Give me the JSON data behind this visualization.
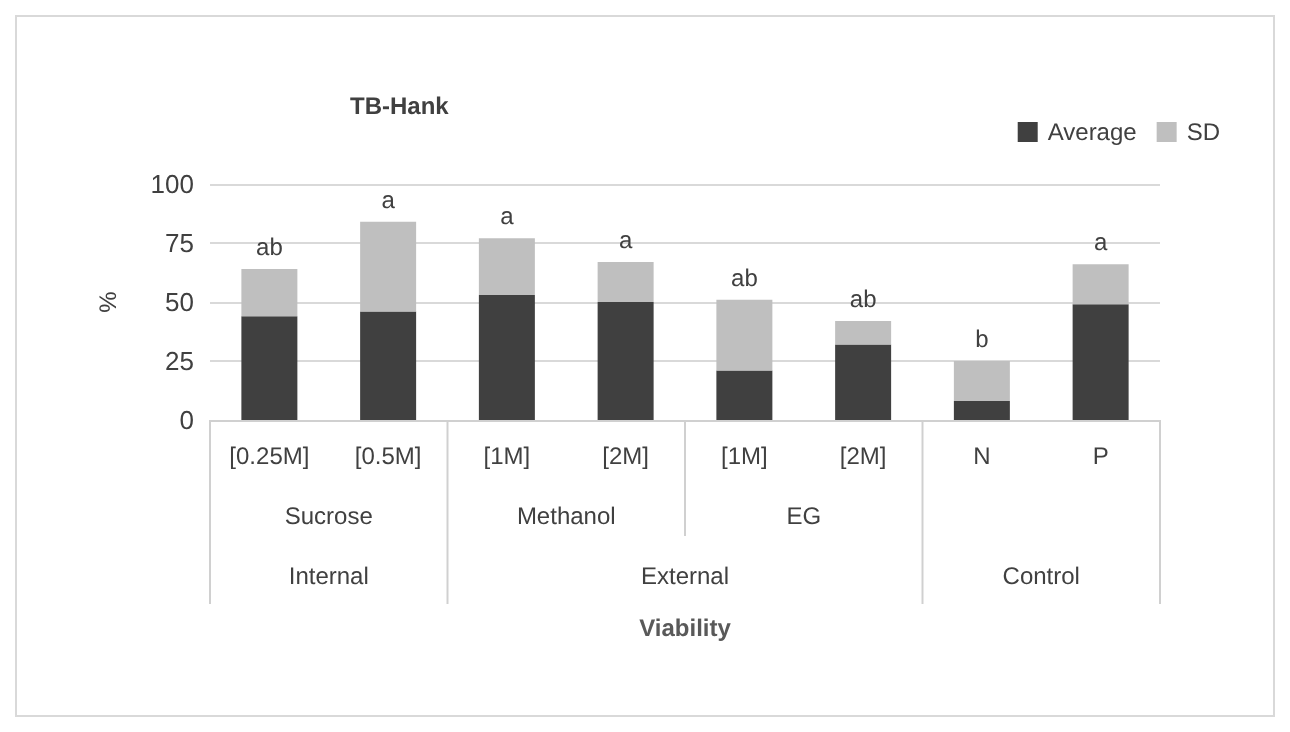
{
  "chart_data": {
    "type": "bar",
    "title": "TB-Hank",
    "ylabel": "%",
    "categories": [
      "[0.25M]",
      "[0.5M]",
      "[1M]",
      "[2M]",
      "[1M]",
      "[2M]",
      "N",
      "P"
    ],
    "stacked": true,
    "series": [
      {
        "name": "Average",
        "color": "#404040",
        "values": [
          44,
          46,
          53,
          50,
          21,
          32,
          8,
          49
        ]
      },
      {
        "name": "SD",
        "color": "#bfbfbf",
        "values": [
          20,
          38,
          24,
          17,
          30,
          10,
          17,
          17
        ],
        "value_labels": [
          "ab",
          "a",
          "a",
          "a",
          "ab",
          "ab",
          "b",
          "a"
        ]
      }
    ],
    "annotations": [
      "Sucrose",
      "Methanol",
      "EG",
      "Internal",
      "External",
      "Control",
      "Viability"
    ],
    "ylim": [
      0,
      100
    ],
    "yticks": [
      0,
      25,
      50,
      75,
      100
    ],
    "grid": "y",
    "legend": "top right"
  }
}
